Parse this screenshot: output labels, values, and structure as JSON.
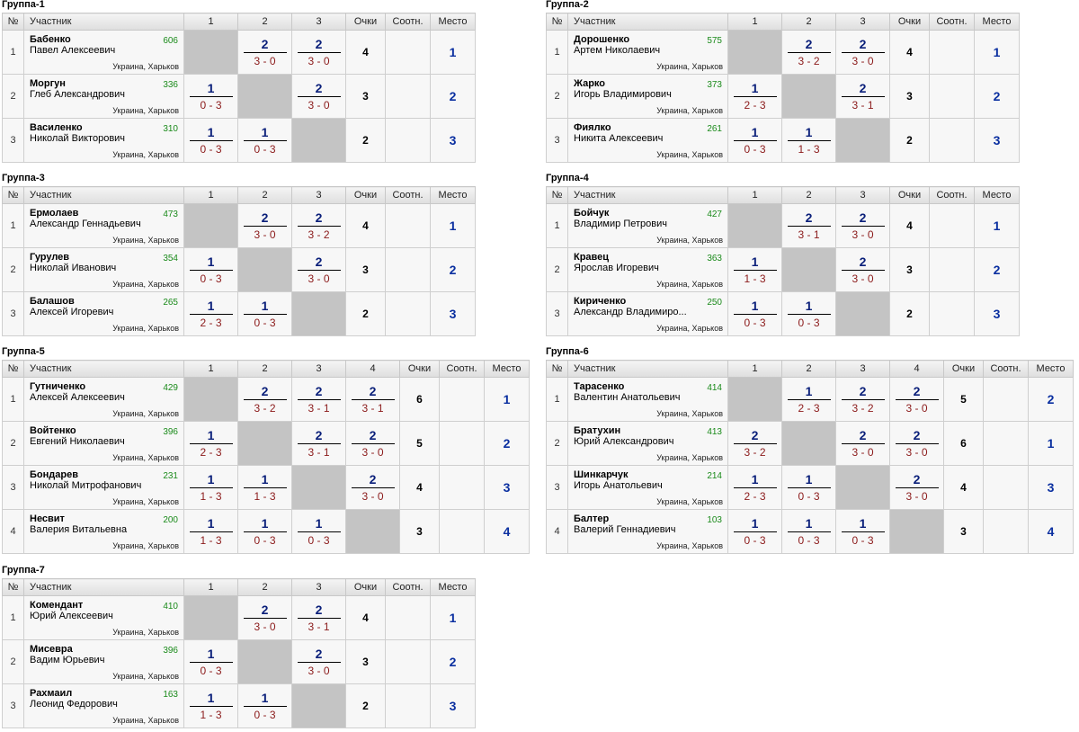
{
  "headers": {
    "no": "№",
    "player": "Участник",
    "points": "Очки",
    "ratio": "Соотн.",
    "place": "Место"
  },
  "groups": [
    {
      "title": "Группа-1",
      "cols": [
        "1",
        "2",
        "3"
      ],
      "players": [
        {
          "no": "1",
          "surname": "Бабенко",
          "given": "Павел Алексеевич",
          "rating": "606",
          "loc": "Украина, Харьков",
          "results": [
            null,
            {
              "p": "2",
              "s": "3 - 0"
            },
            {
              "p": "2",
              "s": "3 - 0"
            }
          ],
          "total": "4",
          "place": "1"
        },
        {
          "no": "2",
          "surname": "Моргун",
          "given": "Глеб Александрович",
          "rating": "336",
          "loc": "Украина, Харьков",
          "results": [
            {
              "p": "1",
              "s": "0 - 3"
            },
            null,
            {
              "p": "2",
              "s": "3 - 0"
            }
          ],
          "total": "3",
          "place": "2"
        },
        {
          "no": "3",
          "surname": "Василенко",
          "given": "Николай Викторович",
          "rating": "310",
          "loc": "Украина, Харьков",
          "results": [
            {
              "p": "1",
              "s": "0 - 3"
            },
            {
              "p": "1",
              "s": "0 - 3"
            },
            null
          ],
          "total": "2",
          "place": "3"
        }
      ]
    },
    {
      "title": "Группа-2",
      "cols": [
        "1",
        "2",
        "3"
      ],
      "players": [
        {
          "no": "1",
          "surname": "Дорошенко",
          "given": "Артем Николаевич",
          "rating": "575",
          "loc": "Украина, Харьков",
          "results": [
            null,
            {
              "p": "2",
              "s": "3 - 2"
            },
            {
              "p": "2",
              "s": "3 - 0"
            }
          ],
          "total": "4",
          "place": "1"
        },
        {
          "no": "2",
          "surname": "Жарко",
          "given": "Игорь Владимирович",
          "rating": "373",
          "loc": "Украина, Харьков",
          "results": [
            {
              "p": "1",
              "s": "2 - 3"
            },
            null,
            {
              "p": "2",
              "s": "3 - 1"
            }
          ],
          "total": "3",
          "place": "2"
        },
        {
          "no": "3",
          "surname": "Фиялко",
          "given": "Никита Алексеевич",
          "rating": "261",
          "loc": "Украина, Харьков",
          "results": [
            {
              "p": "1",
              "s": "0 - 3"
            },
            {
              "p": "1",
              "s": "1 - 3"
            },
            null
          ],
          "total": "2",
          "place": "3"
        }
      ]
    },
    {
      "title": "Группа-3",
      "cols": [
        "1",
        "2",
        "3"
      ],
      "players": [
        {
          "no": "1",
          "surname": "Ермолаев",
          "given": "Александр Геннадьевич",
          "rating": "473",
          "loc": "Украина, Харьков",
          "results": [
            null,
            {
              "p": "2",
              "s": "3 - 0"
            },
            {
              "p": "2",
              "s": "3 - 2"
            }
          ],
          "total": "4",
          "place": "1"
        },
        {
          "no": "2",
          "surname": "Гурулев",
          "given": "Николай Иванович",
          "rating": "354",
          "loc": "Украина, Харьков",
          "results": [
            {
              "p": "1",
              "s": "0 - 3"
            },
            null,
            {
              "p": "2",
              "s": "3 - 0"
            }
          ],
          "total": "3",
          "place": "2"
        },
        {
          "no": "3",
          "surname": "Балашов",
          "given": "Алексей Игоревич",
          "rating": "265",
          "loc": "Украина, Харьков",
          "results": [
            {
              "p": "1",
              "s": "2 - 3"
            },
            {
              "p": "1",
              "s": "0 - 3"
            },
            null
          ],
          "total": "2",
          "place": "3"
        }
      ]
    },
    {
      "title": "Группа-4",
      "cols": [
        "1",
        "2",
        "3"
      ],
      "players": [
        {
          "no": "1",
          "surname": "Бойчук",
          "given": "Владимир Петрович",
          "rating": "427",
          "loc": "Украина, Харьков",
          "results": [
            null,
            {
              "p": "2",
              "s": "3 - 1"
            },
            {
              "p": "2",
              "s": "3 - 0"
            }
          ],
          "total": "4",
          "place": "1"
        },
        {
          "no": "2",
          "surname": "Кравец",
          "given": "Ярослав Игоревич",
          "rating": "363",
          "loc": "Украина, Харьков",
          "results": [
            {
              "p": "1",
              "s": "1 - 3"
            },
            null,
            {
              "p": "2",
              "s": "3 - 0"
            }
          ],
          "total": "3",
          "place": "2"
        },
        {
          "no": "3",
          "surname": "Кириченко",
          "given": "Александр Владимиро...",
          "rating": "250",
          "loc": "Украина, Харьков",
          "results": [
            {
              "p": "1",
              "s": "0 - 3"
            },
            {
              "p": "1",
              "s": "0 - 3"
            },
            null
          ],
          "total": "2",
          "place": "3"
        }
      ]
    },
    {
      "title": "Группа-5",
      "cols": [
        "1",
        "2",
        "3",
        "4"
      ],
      "players": [
        {
          "no": "1",
          "surname": "Гутниченко",
          "given": "Алексей Алексеевич",
          "rating": "429",
          "loc": "Украина, Харьков",
          "results": [
            null,
            {
              "p": "2",
              "s": "3 - 2"
            },
            {
              "p": "2",
              "s": "3 - 1"
            },
            {
              "p": "2",
              "s": "3 - 1"
            }
          ],
          "total": "6",
          "place": "1"
        },
        {
          "no": "2",
          "surname": "Войтенко",
          "given": "Евгений Николаевич",
          "rating": "396",
          "loc": "Украина, Харьков",
          "results": [
            {
              "p": "1",
              "s": "2 - 3"
            },
            null,
            {
              "p": "2",
              "s": "3 - 1"
            },
            {
              "p": "2",
              "s": "3 - 0"
            }
          ],
          "total": "5",
          "place": "2"
        },
        {
          "no": "3",
          "surname": "Бондарев",
          "given": "Николай Митрофанович",
          "rating": "231",
          "loc": "Украина, Харьков",
          "results": [
            {
              "p": "1",
              "s": "1 - 3"
            },
            {
              "p": "1",
              "s": "1 - 3"
            },
            null,
            {
              "p": "2",
              "s": "3 - 0"
            }
          ],
          "total": "4",
          "place": "3"
        },
        {
          "no": "4",
          "surname": "Несвит",
          "given": "Валерия Витальевна",
          "rating": "200",
          "loc": "Украина, Харьков",
          "results": [
            {
              "p": "1",
              "s": "1 - 3"
            },
            {
              "p": "1",
              "s": "0 - 3"
            },
            {
              "p": "1",
              "s": "0 - 3"
            },
            null
          ],
          "total": "3",
          "place": "4"
        }
      ]
    },
    {
      "title": "Группа-6",
      "cols": [
        "1",
        "2",
        "3",
        "4"
      ],
      "players": [
        {
          "no": "1",
          "surname": "Тарасенко",
          "given": "Валентин Анатольевич",
          "rating": "414",
          "loc": "Украина, Харьков",
          "results": [
            null,
            {
              "p": "1",
              "s": "2 - 3"
            },
            {
              "p": "2",
              "s": "3 - 2"
            },
            {
              "p": "2",
              "s": "3 - 0"
            }
          ],
          "total": "5",
          "place": "2"
        },
        {
          "no": "2",
          "surname": "Братухин",
          "given": "Юрий Александрович",
          "rating": "413",
          "loc": "Украина, Харьков",
          "results": [
            {
              "p": "2",
              "s": "3 - 2"
            },
            null,
            {
              "p": "2",
              "s": "3 - 0"
            },
            {
              "p": "2",
              "s": "3 - 0"
            }
          ],
          "total": "6",
          "place": "1"
        },
        {
          "no": "3",
          "surname": "Шинкарчук",
          "given": "Игорь Анатольевич",
          "rating": "214",
          "loc": "Украина, Харьков",
          "results": [
            {
              "p": "1",
              "s": "2 - 3"
            },
            {
              "p": "1",
              "s": "0 - 3"
            },
            null,
            {
              "p": "2",
              "s": "3 - 0"
            }
          ],
          "total": "4",
          "place": "3"
        },
        {
          "no": "4",
          "surname": "Балтер",
          "given": "Валерий Геннадиевич",
          "rating": "103",
          "loc": "Украина, Харьков",
          "results": [
            {
              "p": "1",
              "s": "0 - 3"
            },
            {
              "p": "1",
              "s": "0 - 3"
            },
            {
              "p": "1",
              "s": "0 - 3"
            },
            null
          ],
          "total": "3",
          "place": "4"
        }
      ]
    },
    {
      "title": "Группа-7",
      "cols": [
        "1",
        "2",
        "3"
      ],
      "players": [
        {
          "no": "1",
          "surname": "Комендант",
          "given": "Юрий Алексеевич",
          "rating": "410",
          "loc": "Украина, Харьков",
          "results": [
            null,
            {
              "p": "2",
              "s": "3 - 0"
            },
            {
              "p": "2",
              "s": "3 - 1"
            }
          ],
          "total": "4",
          "place": "1"
        },
        {
          "no": "2",
          "surname": "Мисевра",
          "given": "Вадим Юрьевич",
          "rating": "396",
          "loc": "Украина, Харьков",
          "results": [
            {
              "p": "1",
              "s": "0 - 3"
            },
            null,
            {
              "p": "2",
              "s": "3 - 0"
            }
          ],
          "total": "3",
          "place": "2"
        },
        {
          "no": "3",
          "surname": "Рахмаил",
          "given": "Леонид Федорович",
          "rating": "163",
          "loc": "Украина, Харьков",
          "results": [
            {
              "p": "1",
              "s": "1 - 3"
            },
            {
              "p": "1",
              "s": "0 - 3"
            },
            null
          ],
          "total": "2",
          "place": "3"
        }
      ]
    }
  ]
}
